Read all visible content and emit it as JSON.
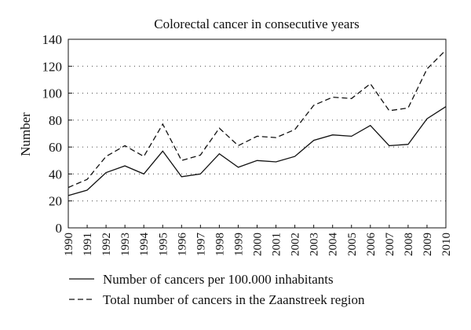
{
  "chart_data": {
    "type": "line",
    "title": "Colorectal cancer in consecutive years",
    "xlabel": "",
    "ylabel": "Number",
    "x": [
      "1990",
      "1991",
      "1992",
      "1993",
      "1994",
      "1995",
      "1996",
      "1997",
      "1998",
      "1999",
      "2000",
      "2001",
      "2002",
      "2003",
      "2004",
      "2005",
      "2006",
      "2007",
      "2008",
      "2009",
      "2010"
    ],
    "ylim": [
      0,
      140
    ],
    "yticks": [
      "0",
      "20",
      "40",
      "60",
      "80",
      "100",
      "120",
      "140"
    ],
    "grid": "horizontal dotted",
    "legend_position": "bottom",
    "series": [
      {
        "name": "Number of cancers per 100.000 inhabitants",
        "style": "solid",
        "values": [
          24,
          28,
          41,
          46,
          40,
          57,
          38,
          40,
          55,
          45,
          50,
          49,
          53,
          65,
          69,
          68,
          76,
          61,
          62,
          81,
          90
        ]
      },
      {
        "name": "Total number of cancers in the Zaanstreek region",
        "style": "dashed",
        "values": [
          30,
          36,
          53,
          61,
          53,
          77,
          50,
          54,
          74,
          61,
          68,
          67,
          73,
          91,
          97,
          96,
          107,
          87,
          89,
          118,
          132
        ]
      }
    ]
  }
}
